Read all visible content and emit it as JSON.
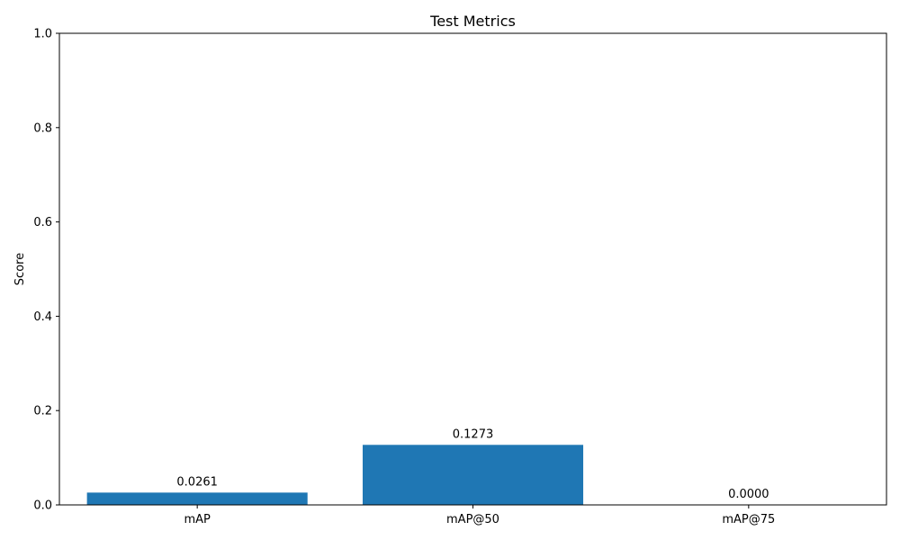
{
  "chart_data": {
    "type": "bar",
    "title": "Test Metrics",
    "xlabel": "",
    "ylabel": "Score",
    "categories": [
      "mAP",
      "mAP@50",
      "mAP@75"
    ],
    "values": [
      0.0261,
      0.1273,
      0.0
    ],
    "data_labels": [
      "0.0261",
      "0.1273",
      "0.0000"
    ],
    "ylim": [
      0,
      1
    ],
    "yticks": [
      0.0,
      0.2,
      0.4,
      0.6,
      0.8,
      1.0
    ],
    "ytick_labels": [
      "0.0",
      "0.2",
      "0.4",
      "0.6",
      "0.8",
      "1.0"
    ],
    "grid": false,
    "bar_color": "#1f77b4"
  }
}
